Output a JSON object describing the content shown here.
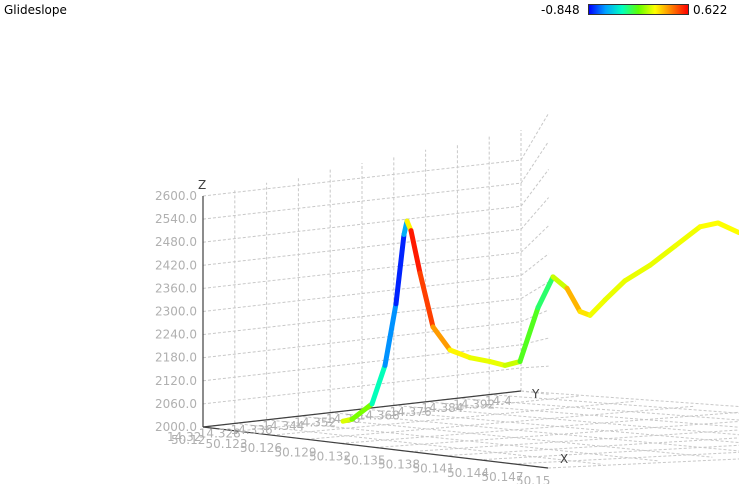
{
  "window": {
    "title": "Glideslope"
  },
  "color_scale": {
    "min_label": "-0.848",
    "max_label": "0.622",
    "colors": [
      "#0000ff",
      "#00a0ff",
      "#00ffc0",
      "#60ff00",
      "#ffff00",
      "#ff8000",
      "#ff0000"
    ]
  },
  "axes": {
    "x_label": "X",
    "y_label": "Y",
    "z_label": "Z"
  },
  "chart_data": {
    "type": "line",
    "title": "Glideslope",
    "zlabel": "Z",
    "xlabel": "X",
    "ylabel": "Y",
    "zlim": [
      2000.0,
      2600.0
    ],
    "z_ticks": [
      "2600.0",
      "2540.0",
      "2480.0",
      "2420.0",
      "2360.0",
      "2300.0",
      "2240.0",
      "2180.0",
      "2120.0",
      "2060.0",
      "2000.0"
    ],
    "x_ticks": [
      "50.12",
      "50.123",
      "50.126",
      "50.129",
      "50.132",
      "50.135",
      "50.138",
      "50.141",
      "50.144",
      "50.147",
      "50.15"
    ],
    "y_ticks": [
      "14.32",
      "14.328",
      "14.336",
      "14.344",
      "14.352",
      "14.36",
      "14.368",
      "14.376",
      "14.384",
      "14.392",
      "14.4"
    ],
    "grid": true,
    "series": [
      {
        "profile": [
          {
            "alt": 2015,
            "c": 0.1
          },
          {
            "alt": 2020,
            "c": 0.05
          },
          {
            "alt": 2060,
            "c": -0.2
          },
          {
            "alt": 2160,
            "c": -0.5
          },
          {
            "alt": 2320,
            "c": -0.75
          },
          {
            "alt": 2500,
            "c": -0.84
          },
          {
            "alt": 2535,
            "c": -0.3
          },
          {
            "alt": 2510,
            "c": 0.6
          },
          {
            "alt": 2400,
            "c": 0.55
          },
          {
            "alt": 2260,
            "c": 0.45
          },
          {
            "alt": 2200,
            "c": 0.2
          },
          {
            "alt": 2180,
            "c": 0.1
          },
          {
            "alt": 2170,
            "c": 0.1
          },
          {
            "alt": 2160,
            "c": 0.1
          },
          {
            "alt": 2170,
            "c": 0.0
          },
          {
            "alt": 2310,
            "c": -0.3
          },
          {
            "alt": 2390,
            "c": -0.2
          },
          {
            "alt": 2360,
            "c": 0.3
          },
          {
            "alt": 2300,
            "c": 0.25
          },
          {
            "alt": 2290,
            "c": 0.12
          },
          {
            "alt": 2330,
            "c": 0.1
          },
          {
            "alt": 2380,
            "c": 0.1
          },
          {
            "alt": 2420,
            "c": 0.1
          },
          {
            "alt": 2470,
            "c": 0.1
          },
          {
            "alt": 2520,
            "c": 0.12
          },
          {
            "alt": 2530,
            "c": 0.14
          },
          {
            "alt": 2505,
            "c": 0.12
          }
        ]
      }
    ]
  }
}
